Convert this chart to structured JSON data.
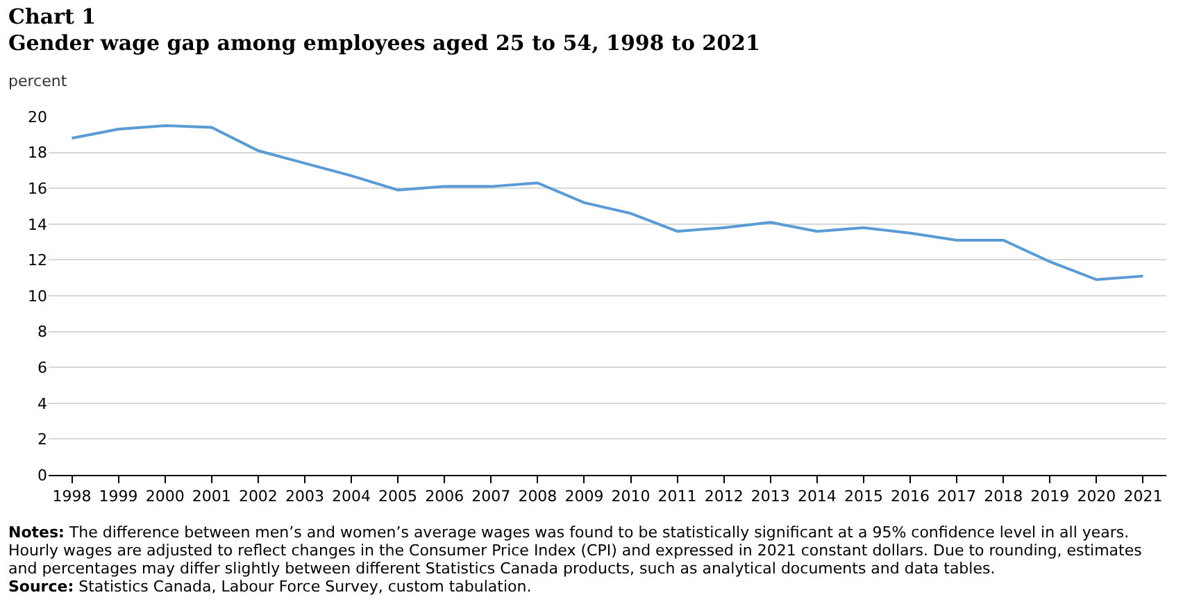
{
  "chart_data": {
    "type": "line",
    "title": "Chart 1",
    "subtitle": "Gender wage gap among employees aged 25 to 54, 1998 to 2021",
    "ylabel": "percent",
    "categories": [
      "1998",
      "1999",
      "2000",
      "2001",
      "2002",
      "2003",
      "2004",
      "2005",
      "2006",
      "2007",
      "2008",
      "2009",
      "2010",
      "2011",
      "2012",
      "2013",
      "2014",
      "2015",
      "2016",
      "2017",
      "2018",
      "2019",
      "2020",
      "2021"
    ],
    "series": [
      {
        "color": "#5b9bd5",
        "values": [
          18.8,
          19.3,
          19.5,
          19.4,
          18.1,
          17.4,
          16.7,
          15.9,
          16.1,
          16.1,
          16.3,
          15.2,
          14.6,
          13.6,
          13.8,
          14.1,
          13.6,
          13.8,
          13.5,
          13.1,
          13.1,
          11.9,
          10.9,
          11.1
        ]
      }
    ],
    "ylim": [
      0,
      20
    ],
    "yticks": [
      0,
      2,
      4,
      6,
      8,
      10,
      12,
      14,
      16,
      18,
      20
    ],
    "grid": "y",
    "annotations": [
      "Notes: The difference between men’s and women’s average wages was found to be statistically significant at a 95% confidence level in all years. Hourly wages are adjusted to reflect changes in the Consumer Price Index (CPI) and expressed in 2021 constant dollars. Due to rounding, estimates and percentages may differ slightly between different Statistics Canada products, such as analytical documents and data tables.",
      "Source: Statistics Canada, Labour Force Survey, custom tabulation."
    ]
  }
}
